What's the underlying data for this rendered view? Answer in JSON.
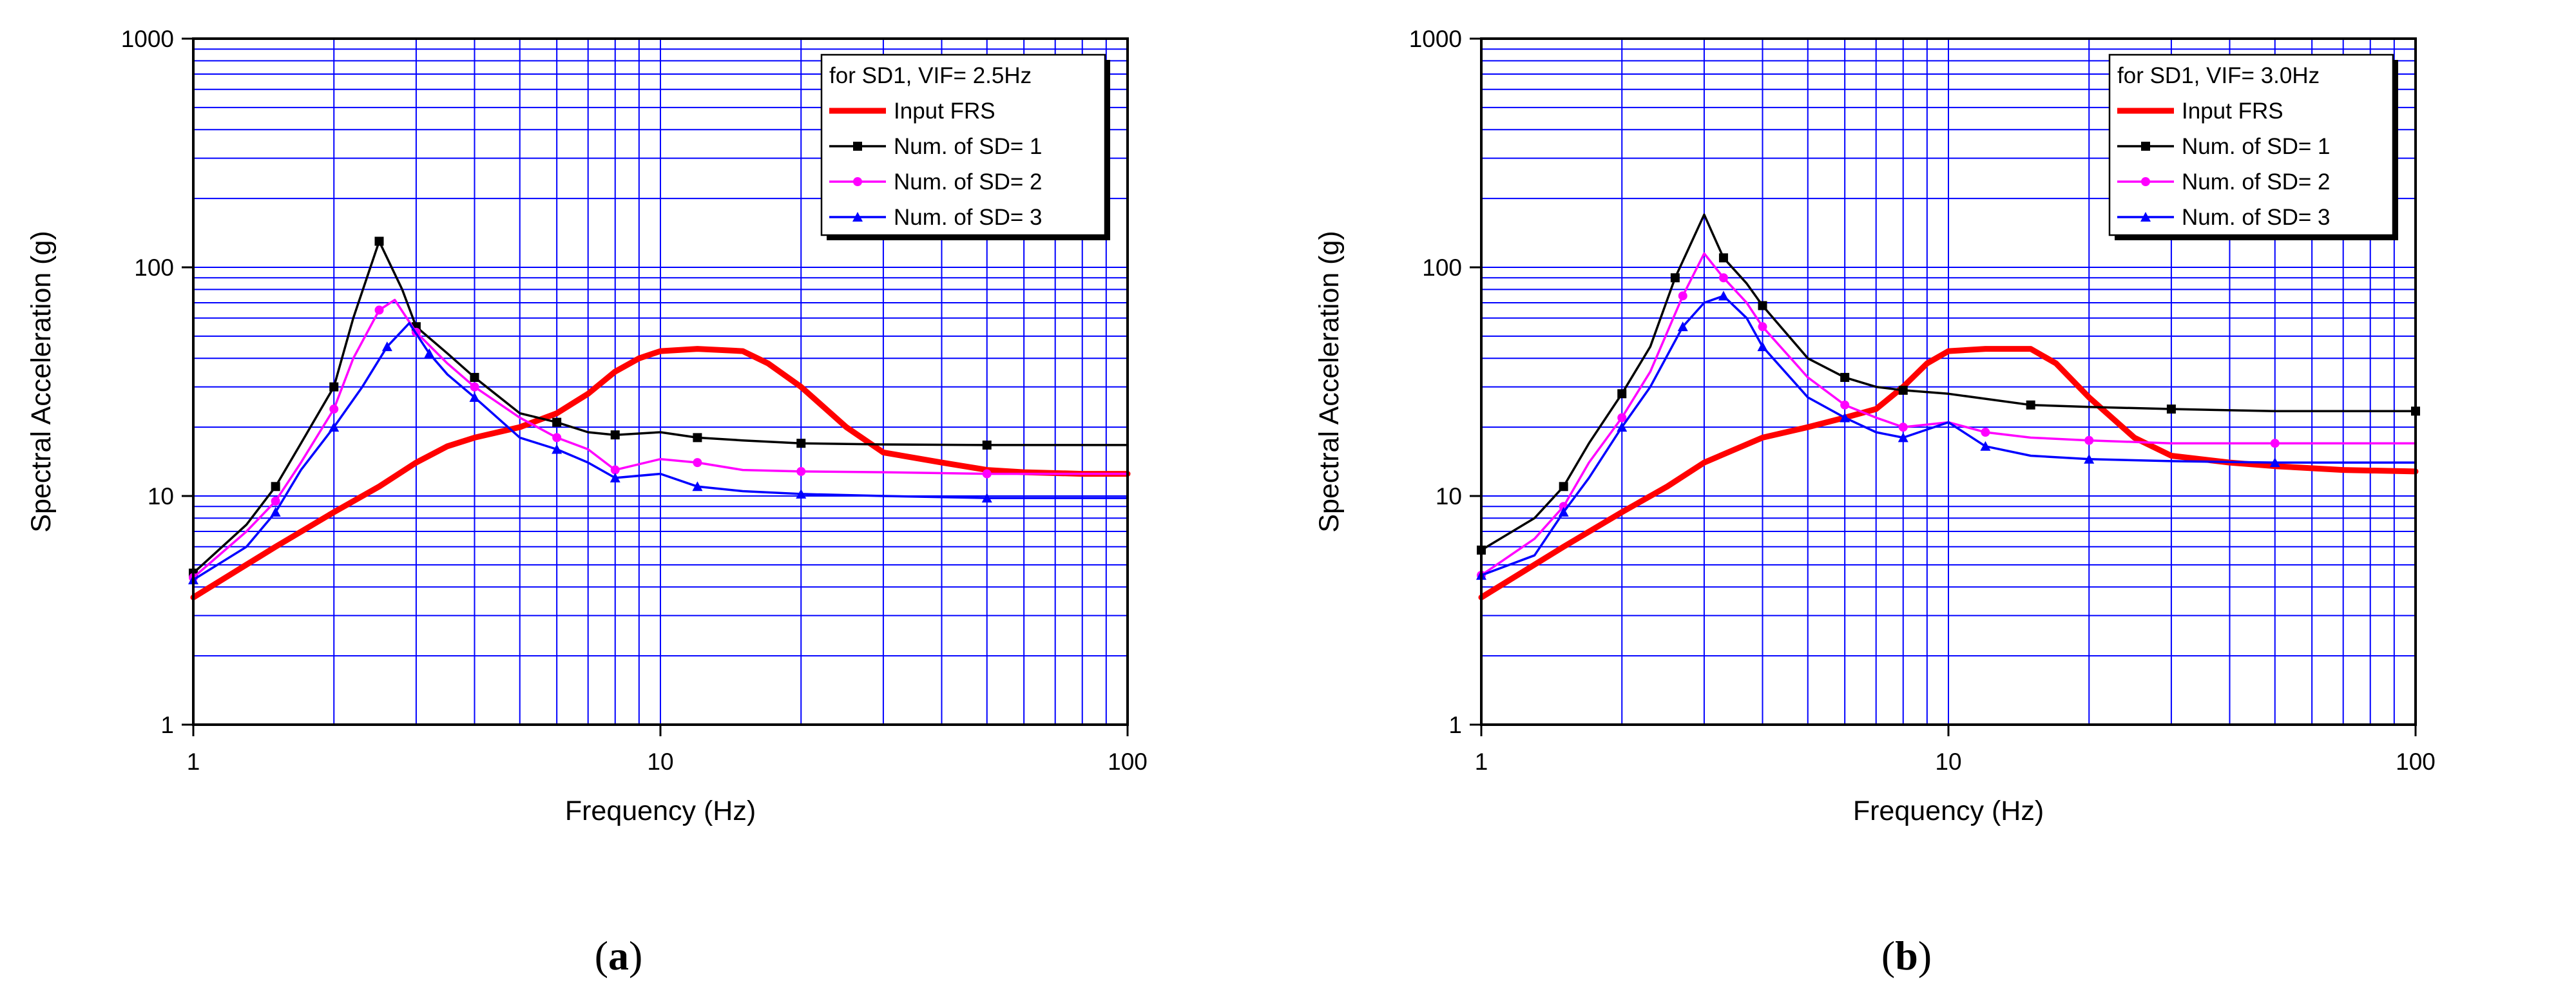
{
  "chart_data": [
    {
      "type": "line",
      "panel_label": "a",
      "xlabel": "Frequency (Hz)",
      "ylabel": "Spectral Acceleration (g)",
      "xscale": "log",
      "yscale": "log",
      "xlim": [
        1,
        100
      ],
      "ylim": [
        1,
        1000
      ],
      "xticks": [
        1,
        10,
        100
      ],
      "xtick_labels": [
        "1",
        "10",
        "100"
      ],
      "yticks": [
        1,
        10,
        100,
        1000
      ],
      "ytick_labels": [
        "1",
        "10",
        "100",
        "1000"
      ],
      "grid": true,
      "legend_title": "for SD1, VIF= 2.5Hz",
      "legend_position": "top-right",
      "series": [
        {
          "name": "Input FRS",
          "color": "#ff0000",
          "marker": "none",
          "points": [
            [
              1.0,
              3.6
            ],
            [
              1.5,
              6.0
            ],
            [
              2.0,
              8.5
            ],
            [
              2.5,
              11.0
            ],
            [
              3.0,
              14.0
            ],
            [
              3.5,
              16.5
            ],
            [
              4.0,
              18.0
            ],
            [
              5.0,
              20.0
            ],
            [
              6.0,
              23.0
            ],
            [
              7.0,
              28.0
            ],
            [
              8.0,
              35.0
            ],
            [
              9.0,
              40.0
            ],
            [
              10.0,
              43.0
            ],
            [
              12.0,
              44.0
            ],
            [
              15.0,
              43.0
            ],
            [
              17.0,
              38.0
            ],
            [
              20.0,
              30.0
            ],
            [
              25.0,
              20.0
            ],
            [
              30.0,
              15.5
            ],
            [
              40.0,
              14.0
            ],
            [
              50.0,
              13.0
            ],
            [
              60.0,
              12.7
            ],
            [
              80.0,
              12.5
            ],
            [
              100.0,
              12.5
            ]
          ]
        },
        {
          "name": "Num. of SD= 1",
          "color": "#000000",
          "marker": "square",
          "points": [
            [
              1.0,
              4.6
            ],
            [
              1.3,
              7.5
            ],
            [
              1.5,
              11.0
            ],
            [
              1.7,
              17.0
            ],
            [
              2.0,
              30.0
            ],
            [
              2.2,
              60.0
            ],
            [
              2.5,
              130.0
            ],
            [
              2.8,
              80.0
            ],
            [
              3.0,
              55.0
            ],
            [
              3.5,
              42.0
            ],
            [
              4.0,
              33.0
            ],
            [
              5.0,
              23.0
            ],
            [
              6.0,
              21.0
            ],
            [
              7.0,
              19.0
            ],
            [
              8.0,
              18.5
            ],
            [
              10.0,
              19.0
            ],
            [
              12.0,
              18.0
            ],
            [
              15.0,
              17.5
            ],
            [
              20.0,
              17.0
            ],
            [
              30.0,
              16.8
            ],
            [
              50.0,
              16.7
            ],
            [
              100.0,
              16.7
            ]
          ]
        },
        {
          "name": "Num. of SD= 2",
          "color": "#ff00ff",
          "marker": "circle",
          "points": [
            [
              1.0,
              4.4
            ],
            [
              1.3,
              7.0
            ],
            [
              1.5,
              9.5
            ],
            [
              1.7,
              14.0
            ],
            [
              2.0,
              24.0
            ],
            [
              2.2,
              40.0
            ],
            [
              2.5,
              65.0
            ],
            [
              2.7,
              72.0
            ],
            [
              3.0,
              52.0
            ],
            [
              3.5,
              38.0
            ],
            [
              4.0,
              30.0
            ],
            [
              5.0,
              22.0
            ],
            [
              6.0,
              18.0
            ],
            [
              7.0,
              16.0
            ],
            [
              8.0,
              13.0
            ],
            [
              10.0,
              14.5
            ],
            [
              12.0,
              14.0
            ],
            [
              15.0,
              13.0
            ],
            [
              20.0,
              12.8
            ],
            [
              30.0,
              12.7
            ],
            [
              50.0,
              12.5
            ],
            [
              100.0,
              12.5
            ]
          ]
        },
        {
          "name": "Num. of SD= 3",
          "color": "#0000ff",
          "marker": "triangle",
          "points": [
            [
              1.0,
              4.3
            ],
            [
              1.3,
              6.0
            ],
            [
              1.5,
              8.5
            ],
            [
              1.7,
              13.0
            ],
            [
              2.0,
              20.0
            ],
            [
              2.3,
              30.0
            ],
            [
              2.6,
              45.0
            ],
            [
              2.9,
              57.0
            ],
            [
              3.2,
              42.0
            ],
            [
              3.5,
              34.0
            ],
            [
              4.0,
              27.0
            ],
            [
              5.0,
              18.0
            ],
            [
              6.0,
              16.0
            ],
            [
              7.0,
              14.0
            ],
            [
              8.0,
              12.0
            ],
            [
              10.0,
              12.5
            ],
            [
              12.0,
              11.0
            ],
            [
              15.0,
              10.5
            ],
            [
              20.0,
              10.2
            ],
            [
              30.0,
              10.0
            ],
            [
              50.0,
              9.8
            ],
            [
              100.0,
              9.8
            ]
          ]
        }
      ]
    },
    {
      "type": "line",
      "panel_label": "b",
      "xlabel": "Frequency (Hz)",
      "ylabel": "Spectral Acceleration (g)",
      "xscale": "log",
      "yscale": "log",
      "xlim": [
        1,
        100
      ],
      "ylim": [
        1,
        1000
      ],
      "xticks": [
        1,
        10,
        100
      ],
      "xtick_labels": [
        "1",
        "10",
        "100"
      ],
      "yticks": [
        1,
        10,
        100,
        1000
      ],
      "ytick_labels": [
        "1",
        "10",
        "100",
        "1000"
      ],
      "grid": true,
      "legend_title": "for SD1, VIF= 3.0Hz",
      "legend_position": "top-right",
      "series": [
        {
          "name": "Input FRS",
          "color": "#ff0000",
          "marker": "none",
          "points": [
            [
              1.0,
              3.6
            ],
            [
              1.5,
              6.0
            ],
            [
              2.0,
              8.5
            ],
            [
              2.5,
              11.0
            ],
            [
              3.0,
              14.0
            ],
            [
              4.0,
              18.0
            ],
            [
              5.0,
              20.0
            ],
            [
              6.0,
              22.0
            ],
            [
              7.0,
              24.0
            ],
            [
              8.0,
              30.0
            ],
            [
              9.0,
              38.0
            ],
            [
              10.0,
              43.0
            ],
            [
              12.0,
              44.0
            ],
            [
              15.0,
              44.0
            ],
            [
              17.0,
              38.0
            ],
            [
              20.0,
              27.0
            ],
            [
              25.0,
              18.0
            ],
            [
              30.0,
              15.0
            ],
            [
              40.0,
              14.0
            ],
            [
              50.0,
              13.5
            ],
            [
              70.0,
              13.0
            ],
            [
              100.0,
              12.8
            ]
          ]
        },
        {
          "name": "Num. of SD= 1",
          "color": "#000000",
          "marker": "square",
          "points": [
            [
              1.0,
              5.8
            ],
            [
              1.3,
              8.0
            ],
            [
              1.5,
              11.0
            ],
            [
              1.7,
              17.0
            ],
            [
              2.0,
              28.0
            ],
            [
              2.3,
              45.0
            ],
            [
              2.6,
              90.0
            ],
            [
              3.0,
              170.0
            ],
            [
              3.3,
              110.0
            ],
            [
              3.7,
              85.0
            ],
            [
              4.0,
              68.0
            ],
            [
              5.0,
              40.0
            ],
            [
              6.0,
              33.0
            ],
            [
              7.0,
              30.0
            ],
            [
              8.0,
              29.0
            ],
            [
              10.0,
              28.0
            ],
            [
              15.0,
              25.0
            ],
            [
              20.0,
              24.5
            ],
            [
              30.0,
              24.0
            ],
            [
              50.0,
              23.5
            ],
            [
              100.0,
              23.5
            ]
          ]
        },
        {
          "name": "Num. of SD= 2",
          "color": "#ff00ff",
          "marker": "circle",
          "points": [
            [
              1.0,
              4.5
            ],
            [
              1.3,
              6.5
            ],
            [
              1.5,
              9.0
            ],
            [
              1.7,
              14.0
            ],
            [
              2.0,
              22.0
            ],
            [
              2.3,
              35.0
            ],
            [
              2.7,
              75.0
            ],
            [
              3.0,
              115.0
            ],
            [
              3.3,
              90.0
            ],
            [
              3.7,
              70.0
            ],
            [
              4.0,
              55.0
            ],
            [
              5.0,
              33.0
            ],
            [
              6.0,
              25.0
            ],
            [
              7.0,
              22.0
            ],
            [
              8.0,
              20.0
            ],
            [
              10.0,
              21.0
            ],
            [
              12.0,
              19.0
            ],
            [
              15.0,
              18.0
            ],
            [
              20.0,
              17.5
            ],
            [
              30.0,
              17.0
            ],
            [
              50.0,
              17.0
            ],
            [
              100.0,
              17.0
            ]
          ]
        },
        {
          "name": "Num. of SD= 3",
          "color": "#0000ff",
          "marker": "triangle",
          "points": [
            [
              1.0,
              4.5
            ],
            [
              1.3,
              5.5
            ],
            [
              1.5,
              8.5
            ],
            [
              1.7,
              12.0
            ],
            [
              2.0,
              20.0
            ],
            [
              2.3,
              30.0
            ],
            [
              2.7,
              55.0
            ],
            [
              3.0,
              70.0
            ],
            [
              3.3,
              75.0
            ],
            [
              3.7,
              60.0
            ],
            [
              4.0,
              45.0
            ],
            [
              5.0,
              27.0
            ],
            [
              6.0,
              22.0
            ],
            [
              7.0,
              19.0
            ],
            [
              8.0,
              18.0
            ],
            [
              10.0,
              21.0
            ],
            [
              12.0,
              16.5
            ],
            [
              15.0,
              15.0
            ],
            [
              20.0,
              14.5
            ],
            [
              30.0,
              14.2
            ],
            [
              50.0,
              14.0
            ],
            [
              100.0,
              14.0
            ]
          ]
        }
      ]
    }
  ]
}
